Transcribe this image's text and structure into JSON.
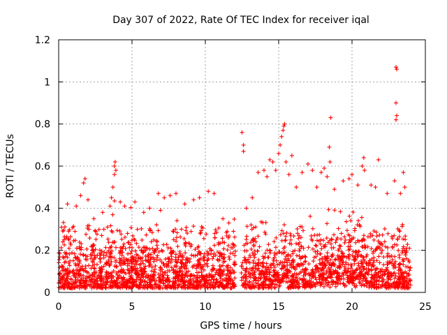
{
  "chart_data": {
    "type": "scatter",
    "title": "Day 307 of 2022, Rate Of TEC Index for receiver iqal",
    "xlabel": "GPS time / hours",
    "ylabel": "ROTI / TECUs",
    "xlim": [
      0,
      25
    ],
    "ylim": [
      0,
      1.2
    ],
    "x_ticks": [
      0,
      5,
      10,
      15,
      20,
      25
    ],
    "x_tick_labels": [
      "0",
      "5",
      "10",
      "15",
      "20",
      "25"
    ],
    "y_ticks": [
      0,
      0.2,
      0.4,
      0.6,
      0.8,
      1.0,
      1.2
    ],
    "y_tick_labels": [
      "0",
      "0.2",
      "0.4",
      "0.6",
      "0.8",
      "1",
      "1.2"
    ],
    "grid": true,
    "marker": "+",
    "color": "#ff0000",
    "density_note": "dense cloud of ROTI samples between ~0.02 and ~0.35 TECU/min from 0-12 h and 12.5-24 h; gap near 12.1-12.4 h",
    "series": [
      {
        "name": "ROTI",
        "points": [
          [
            0.2,
            0.31
          ],
          [
            0.6,
            0.42
          ],
          [
            1.2,
            0.41
          ],
          [
            1.5,
            0.46
          ],
          [
            1.7,
            0.52
          ],
          [
            1.8,
            0.54
          ],
          [
            2.0,
            0.44
          ],
          [
            2.4,
            0.35
          ],
          [
            3.0,
            0.38
          ],
          [
            3.5,
            0.41
          ],
          [
            3.6,
            0.45
          ],
          [
            3.7,
            0.5
          ],
          [
            3.8,
            0.56
          ],
          [
            3.8,
            0.6
          ],
          [
            3.85,
            0.62
          ],
          [
            3.9,
            0.58
          ],
          [
            4.2,
            0.43
          ],
          [
            4.5,
            0.41
          ],
          [
            5.2,
            0.43
          ],
          [
            5.8,
            0.38
          ],
          [
            6.2,
            0.4
          ],
          [
            6.8,
            0.47
          ],
          [
            7.2,
            0.45
          ],
          [
            7.6,
            0.46
          ],
          [
            8.0,
            0.47
          ],
          [
            8.6,
            0.42
          ],
          [
            9.2,
            0.44
          ],
          [
            9.6,
            0.45
          ],
          [
            10.2,
            0.48
          ],
          [
            10.6,
            0.47
          ],
          [
            11.2,
            0.35
          ],
          [
            11.6,
            0.33
          ],
          [
            12.5,
            0.76
          ],
          [
            12.6,
            0.7
          ],
          [
            12.6,
            0.67
          ],
          [
            12.8,
            0.4
          ],
          [
            13.2,
            0.45
          ],
          [
            13.6,
            0.57
          ],
          [
            14.0,
            0.58
          ],
          [
            14.2,
            0.55
          ],
          [
            14.4,
            0.63
          ],
          [
            14.6,
            0.62
          ],
          [
            14.8,
            0.58
          ],
          [
            15.0,
            0.66
          ],
          [
            15.1,
            0.7
          ],
          [
            15.2,
            0.74
          ],
          [
            15.3,
            0.77
          ],
          [
            15.35,
            0.79
          ],
          [
            15.4,
            0.8
          ],
          [
            15.5,
            0.62
          ],
          [
            15.7,
            0.56
          ],
          [
            15.9,
            0.65
          ],
          [
            16.2,
            0.5
          ],
          [
            16.6,
            0.57
          ],
          [
            17.0,
            0.61
          ],
          [
            17.3,
            0.58
          ],
          [
            17.6,
            0.5
          ],
          [
            17.9,
            0.57
          ],
          [
            18.1,
            0.59
          ],
          [
            18.3,
            0.55
          ],
          [
            18.45,
            0.69
          ],
          [
            18.5,
            0.62
          ],
          [
            18.55,
            0.83
          ],
          [
            18.8,
            0.49
          ],
          [
            19.4,
            0.53
          ],
          [
            19.8,
            0.54
          ],
          [
            20.0,
            0.56
          ],
          [
            20.4,
            0.51
          ],
          [
            20.7,
            0.6
          ],
          [
            20.8,
            0.64
          ],
          [
            20.85,
            0.58
          ],
          [
            21.3,
            0.51
          ],
          [
            21.6,
            0.5
          ],
          [
            21.8,
            0.63
          ],
          [
            22.4,
            0.47
          ],
          [
            22.9,
            0.53
          ],
          [
            23.0,
            1.07
          ],
          [
            23.05,
            1.06
          ],
          [
            23.0,
            0.9
          ],
          [
            23.05,
            0.84
          ],
          [
            23.0,
            0.82
          ],
          [
            23.3,
            0.47
          ],
          [
            23.5,
            0.57
          ],
          [
            23.6,
            0.5
          ]
        ]
      }
    ]
  }
}
